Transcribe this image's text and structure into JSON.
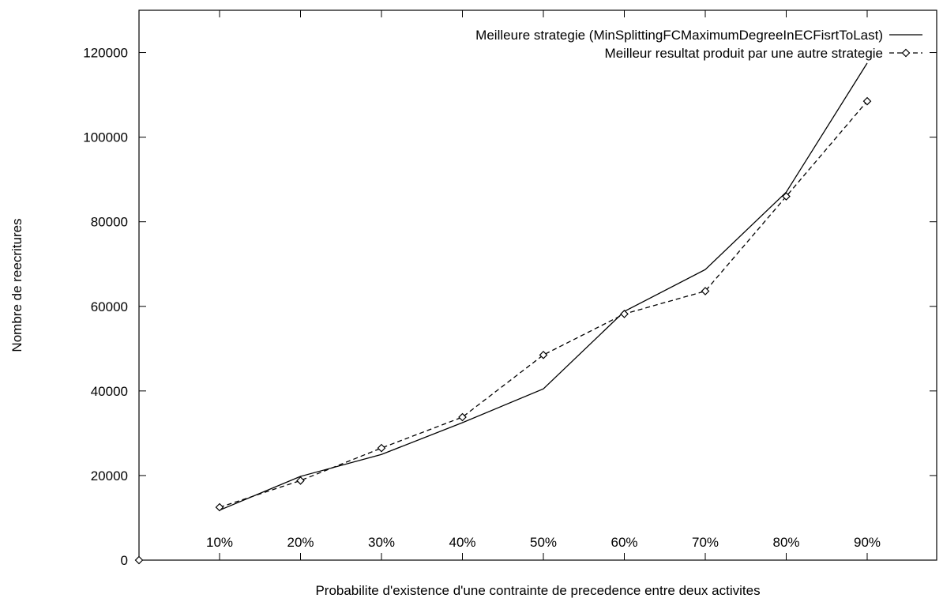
{
  "chart_data": {
    "type": "line",
    "title": "",
    "xlabel": "Probabilite d'existence d'une contrainte de precedence entre deux activites",
    "ylabel": "Nombre de reecritures",
    "categories": [
      "10%",
      "20%",
      "30%",
      "40%",
      "50%",
      "60%",
      "70%",
      "80%",
      "90%"
    ],
    "y_ticks": [
      "0",
      "20000",
      "40000",
      "60000",
      "80000",
      "100000",
      "120000"
    ],
    "ylim": [
      0,
      130000
    ],
    "legend_position": "top-right",
    "grid": false,
    "series": [
      {
        "name": "Meilleure strategie (MinSplittingFCMaximumDegreeInECFisrtToLast)",
        "style": "solid",
        "color": "#000000",
        "values": [
          11800,
          19800,
          25000,
          32500,
          40500,
          58800,
          68700,
          87000,
          117500
        ]
      },
      {
        "name": "Meilleur resultat produit par une autre strategie",
        "style": "dashed-diamond",
        "color": "#000000",
        "values": [
          12500,
          18800,
          26500,
          33800,
          48500,
          58200,
          63600,
          86000,
          108500
        ]
      }
    ],
    "origin_marker": {
      "x_label": "0",
      "y": 0
    }
  }
}
